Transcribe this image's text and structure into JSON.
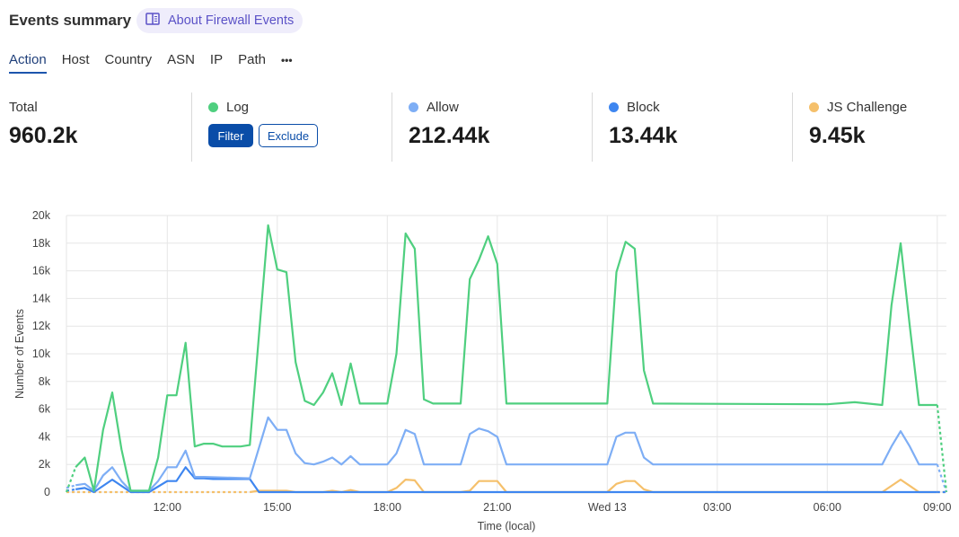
{
  "header": {
    "title": "Events summary",
    "about_label": "About Firewall Events",
    "about_icon": "book-icon"
  },
  "tabs": [
    {
      "label": "Action",
      "active": true
    },
    {
      "label": "Host"
    },
    {
      "label": "Country"
    },
    {
      "label": "ASN"
    },
    {
      "label": "IP"
    },
    {
      "label": "Path"
    },
    {
      "label": "•••"
    }
  ],
  "stats": {
    "total": {
      "label": "Total",
      "value": "960.2k"
    },
    "log": {
      "label": "Log",
      "color": "#4fcf7f",
      "filter_label": "Filter",
      "exclude_label": "Exclude"
    },
    "allow": {
      "label": "Allow",
      "value": "212.44k",
      "color": "#7eaef5"
    },
    "block": {
      "label": "Block",
      "value": "13.44k",
      "color": "#3e86f0"
    },
    "js_challenge": {
      "label": "JS Challenge",
      "value": "9.45k",
      "color": "#f5c06b"
    }
  },
  "chart_data": {
    "type": "line",
    "xlabel": "Time (local)",
    "ylabel": "Number of Events",
    "ylim": [
      0,
      20000
    ],
    "yticks": [
      "0",
      "2k",
      "4k",
      "6k",
      "8k",
      "10k",
      "12k",
      "14k",
      "16k",
      "18k",
      "20k"
    ],
    "xticks": [
      {
        "at": "12T12:00",
        "label": "12:00"
      },
      {
        "at": "12T15:00",
        "label": "15:00"
      },
      {
        "at": "12T18:00",
        "label": "18:00"
      },
      {
        "at": "12T21:00",
        "label": "21:00"
      },
      {
        "at": "13T00:00",
        "label": "Wed 13"
      },
      {
        "at": "13T03:00",
        "label": "03:00"
      },
      {
        "at": "13T06:00",
        "label": "06:00"
      },
      {
        "at": "13T09:00",
        "label": "09:00"
      }
    ],
    "xlim": [
      "12T09:15",
      "13T09:15"
    ],
    "grid": true,
    "series": [
      {
        "name": "Log",
        "color": "#4fcf7f",
        "points": [
          [
            "12T09:15",
            0
          ],
          [
            "12T09:30",
            1800
          ],
          [
            "12T09:45",
            2500
          ],
          [
            "12T10:00",
            100
          ],
          [
            "12T10:15",
            4500
          ],
          [
            "12T10:30",
            7200
          ],
          [
            "12T10:45",
            3100
          ],
          [
            "12T11:00",
            100
          ],
          [
            "12T11:30",
            100
          ],
          [
            "12T11:45",
            2500
          ],
          [
            "12T12:00",
            7000
          ],
          [
            "12T12:15",
            7000
          ],
          [
            "12T12:30",
            10800
          ],
          [
            "12T12:45",
            3300
          ],
          [
            "12T13:00",
            3500
          ],
          [
            "12T13:15",
            3500
          ],
          [
            "12T13:30",
            3300
          ],
          [
            "12T14:00",
            3300
          ],
          [
            "12T14:15",
            3400
          ],
          [
            "12T14:45",
            19300
          ],
          [
            "12T15:00",
            16100
          ],
          [
            "12T15:15",
            15900
          ],
          [
            "12T15:30",
            9400
          ],
          [
            "12T15:45",
            6600
          ],
          [
            "12T16:00",
            6300
          ],
          [
            "12T16:15",
            7200
          ],
          [
            "12T16:30",
            8600
          ],
          [
            "12T16:45",
            6300
          ],
          [
            "12T17:00",
            9300
          ],
          [
            "12T17:15",
            6400
          ],
          [
            "12T18:00",
            6400
          ],
          [
            "12T18:15",
            10000
          ],
          [
            "12T18:30",
            18700
          ],
          [
            "12T18:45",
            17600
          ],
          [
            "12T19:00",
            6700
          ],
          [
            "12T19:15",
            6400
          ],
          [
            "12T20:00",
            6400
          ],
          [
            "12T20:15",
            15400
          ],
          [
            "12T20:30",
            16800
          ],
          [
            "12T20:45",
            18500
          ],
          [
            "12T21:00",
            16500
          ],
          [
            "12T21:15",
            6400
          ],
          [
            "13T00:00",
            6400
          ],
          [
            "13T00:15",
            15900
          ],
          [
            "13T00:30",
            18100
          ],
          [
            "13T00:45",
            17600
          ],
          [
            "13T01:00",
            8800
          ],
          [
            "13T01:15",
            6400
          ],
          [
            "13T06:00",
            6350
          ],
          [
            "13T06:45",
            6500
          ],
          [
            "13T07:30",
            6300
          ],
          [
            "13T07:45",
            13500
          ],
          [
            "13T08:00",
            18000
          ],
          [
            "13T08:15",
            12000
          ],
          [
            "13T08:30",
            6300
          ],
          [
            "13T09:00",
            6300
          ],
          [
            "13T09:15",
            0
          ]
        ]
      },
      {
        "name": "Allow",
        "color": "#7eaef5",
        "points": [
          [
            "12T09:15",
            300
          ],
          [
            "12T09:30",
            500
          ],
          [
            "12T09:45",
            600
          ],
          [
            "12T10:00",
            100
          ],
          [
            "12T10:15",
            1200
          ],
          [
            "12T10:30",
            1800
          ],
          [
            "12T10:45",
            800
          ],
          [
            "12T11:00",
            100
          ],
          [
            "12T11:30",
            100
          ],
          [
            "12T11:45",
            800
          ],
          [
            "12T12:00",
            1800
          ],
          [
            "12T12:15",
            1800
          ],
          [
            "12T12:30",
            3000
          ],
          [
            "12T12:45",
            1100
          ],
          [
            "12T13:00",
            1100
          ],
          [
            "12T14:15",
            1000
          ],
          [
            "12T14:45",
            5400
          ],
          [
            "12T15:00",
            4500
          ],
          [
            "12T15:15",
            4500
          ],
          [
            "12T15:30",
            2800
          ],
          [
            "12T15:45",
            2100
          ],
          [
            "12T16:00",
            2000
          ],
          [
            "12T16:15",
            2200
          ],
          [
            "12T16:30",
            2500
          ],
          [
            "12T16:45",
            2000
          ],
          [
            "12T17:00",
            2600
          ],
          [
            "12T17:15",
            2000
          ],
          [
            "12T18:00",
            2000
          ],
          [
            "12T18:15",
            2800
          ],
          [
            "12T18:30",
            4500
          ],
          [
            "12T18:45",
            4200
          ],
          [
            "12T19:00",
            2000
          ],
          [
            "12T20:00",
            2000
          ],
          [
            "12T20:15",
            4200
          ],
          [
            "12T20:30",
            4600
          ],
          [
            "12T20:45",
            4400
          ],
          [
            "12T21:00",
            4000
          ],
          [
            "12T21:15",
            2000
          ],
          [
            "13T00:00",
            2000
          ],
          [
            "13T00:15",
            4000
          ],
          [
            "13T00:30",
            4300
          ],
          [
            "13T00:45",
            4300
          ],
          [
            "13T01:00",
            2500
          ],
          [
            "13T01:15",
            2000
          ],
          [
            "13T07:30",
            2000
          ],
          [
            "13T07:45",
            3300
          ],
          [
            "13T08:00",
            4400
          ],
          [
            "13T08:15",
            3300
          ],
          [
            "13T08:30",
            2000
          ],
          [
            "13T09:00",
            2000
          ],
          [
            "13T09:15",
            0
          ]
        ]
      },
      {
        "name": "Block",
        "color": "#3e86f0",
        "points": [
          [
            "12T09:15",
            100
          ],
          [
            "12T09:30",
            200
          ],
          [
            "12T09:45",
            300
          ],
          [
            "12T10:00",
            0
          ],
          [
            "12T10:30",
            900
          ],
          [
            "12T11:00",
            0
          ],
          [
            "12T11:30",
            0
          ],
          [
            "12T12:00",
            800
          ],
          [
            "12T12:15",
            800
          ],
          [
            "12T12:30",
            1800
          ],
          [
            "12T12:45",
            1000
          ],
          [
            "12T13:00",
            1000
          ],
          [
            "12T13:15",
            950
          ],
          [
            "12T14:15",
            950
          ],
          [
            "12T14:30",
            0
          ],
          [
            "13T09:00",
            0
          ],
          [
            "13T09:15",
            0
          ]
        ]
      },
      {
        "name": "JS Challenge",
        "color": "#f5c06b",
        "points": [
          [
            "12T09:15",
            0
          ],
          [
            "12T14:15",
            0
          ],
          [
            "12T14:30",
            100
          ],
          [
            "12T15:15",
            100
          ],
          [
            "12T15:30",
            0
          ],
          [
            "12T16:15",
            0
          ],
          [
            "12T16:30",
            100
          ],
          [
            "12T16:45",
            0
          ],
          [
            "12T17:00",
            150
          ],
          [
            "12T17:15",
            0
          ],
          [
            "12T18:00",
            0
          ],
          [
            "12T18:15",
            300
          ],
          [
            "12T18:30",
            900
          ],
          [
            "12T18:45",
            850
          ],
          [
            "12T19:00",
            0
          ],
          [
            "12T20:00",
            0
          ],
          [
            "12T20:15",
            100
          ],
          [
            "12T20:30",
            800
          ],
          [
            "12T20:45",
            800
          ],
          [
            "12T21:00",
            800
          ],
          [
            "12T21:15",
            0
          ],
          [
            "13T00:00",
            0
          ],
          [
            "13T00:15",
            600
          ],
          [
            "13T00:30",
            800
          ],
          [
            "13T00:45",
            800
          ],
          [
            "13T01:00",
            200
          ],
          [
            "13T01:15",
            0
          ],
          [
            "13T07:30",
            0
          ],
          [
            "13T08:00",
            900
          ],
          [
            "13T08:30",
            0
          ],
          [
            "13T09:00",
            0
          ],
          [
            "13T09:15",
            0
          ]
        ]
      }
    ]
  }
}
